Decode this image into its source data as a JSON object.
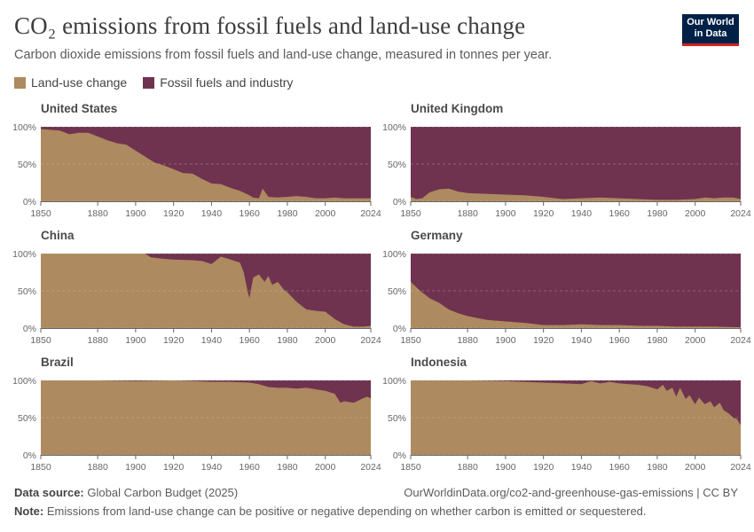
{
  "header": {
    "title": "CO₂ emissions from fossil fuels and land-use change",
    "subtitle": "Carbon dioxide emissions from fossil fuels and land-use change, measured in tonnes per year.",
    "logo_line1": "Our World",
    "logo_line2": "in Data"
  },
  "footer": {
    "source_label": "Data source:",
    "source_value": "Global Carbon Budget (2025)",
    "url": "OurWorldinData.org/co2-and-greenhouse-gas-emissions | CC BY",
    "note_label": "Note:",
    "note_value": "Emissions from land-use change can be positive or negative depending on whether carbon is emitted or sequestered."
  },
  "colors": {
    "land_use": "#ad8a5f",
    "fossil": "#6f3350",
    "grid": "#dddddd",
    "axis": "#666666"
  },
  "chart_data": [
    {
      "type": "area",
      "title": "United States",
      "x_ticks": [
        1850,
        1880,
        1900,
        1920,
        1940,
        1960,
        1980,
        2000,
        2024
      ],
      "y_ticks": [
        "0%",
        "50%",
        "100%"
      ],
      "xlim": [
        1850,
        2024
      ],
      "ylim": [
        0,
        100
      ],
      "series": [
        {
          "name": "Land-use change",
          "x": [
            1850,
            1855,
            1860,
            1865,
            1870,
            1875,
            1880,
            1885,
            1890,
            1895,
            1900,
            1905,
            1910,
            1915,
            1920,
            1925,
            1930,
            1935,
            1940,
            1945,
            1950,
            1955,
            1960,
            1962,
            1965,
            1967,
            1970,
            1975,
            1980,
            1985,
            1990,
            1995,
            2000,
            2005,
            2010,
            2015,
            2020,
            2024
          ],
          "values": [
            97,
            96,
            95,
            90,
            92,
            92,
            87,
            82,
            78,
            76,
            68,
            60,
            52,
            48,
            43,
            38,
            37,
            30,
            24,
            23,
            18,
            14,
            8,
            5,
            4,
            17,
            6,
            5,
            6,
            7,
            6,
            4,
            4,
            5,
            4,
            4,
            4,
            4
          ]
        },
        {
          "name": "Fossil fuels and industry",
          "values": "remainder to 100%"
        }
      ]
    },
    {
      "type": "area",
      "title": "United Kingdom",
      "x_ticks": [
        1850,
        1880,
        1900,
        1920,
        1940,
        1960,
        1980,
        2000,
        2024
      ],
      "y_ticks": [
        "0%",
        "50%",
        "100%"
      ],
      "xlim": [
        1850,
        2024
      ],
      "ylim": [
        0,
        100
      ],
      "series": [
        {
          "name": "Land-use change",
          "x": [
            1850,
            1853,
            1856,
            1860,
            1865,
            1870,
            1875,
            1880,
            1890,
            1900,
            1910,
            1920,
            1930,
            1940,
            1950,
            1960,
            1970,
            1980,
            1990,
            2000,
            2005,
            2010,
            2015,
            2020,
            2024
          ],
          "values": [
            6,
            3,
            4,
            12,
            16,
            17,
            13,
            11,
            10,
            9,
            8,
            6,
            3,
            4,
            5,
            4,
            3,
            2,
            2,
            3,
            5,
            4,
            5,
            5,
            3
          ]
        },
        {
          "name": "Fossil fuels and industry",
          "values": "remainder to 100%"
        }
      ]
    },
    {
      "type": "area",
      "title": "China",
      "x_ticks": [
        1850,
        1880,
        1900,
        1920,
        1940,
        1960,
        1980,
        2000,
        2024
      ],
      "y_ticks": [
        "0%",
        "50%",
        "100%"
      ],
      "xlim": [
        1850,
        2024
      ],
      "ylim": [
        0,
        100
      ],
      "series": [
        {
          "name": "Land-use change",
          "x": [
            1850,
            1880,
            1900,
            1905,
            1908,
            1915,
            1920,
            1930,
            1935,
            1940,
            1945,
            1950,
            1955,
            1957,
            1959,
            1960,
            1962,
            1965,
            1968,
            1970,
            1972,
            1975,
            1978,
            1980,
            1985,
            1990,
            1995,
            2000,
            2005,
            2010,
            2015,
            2020,
            2024
          ],
          "values": [
            100,
            100,
            100,
            100,
            95,
            93,
            92,
            91,
            90,
            86,
            96,
            92,
            88,
            75,
            50,
            40,
            68,
            72,
            62,
            70,
            58,
            62,
            52,
            48,
            35,
            25,
            23,
            22,
            12,
            5,
            2,
            2,
            3
          ]
        },
        {
          "name": "Fossil fuels and industry",
          "values": "remainder to 100%"
        }
      ]
    },
    {
      "type": "area",
      "title": "Germany",
      "x_ticks": [
        1850,
        1880,
        1900,
        1920,
        1940,
        1960,
        1980,
        2000,
        2024
      ],
      "y_ticks": [
        "0%",
        "50%",
        "100%"
      ],
      "xlim": [
        1850,
        2024
      ],
      "ylim": [
        0,
        100
      ],
      "series": [
        {
          "name": "Land-use change",
          "x": [
            1850,
            1855,
            1860,
            1865,
            1870,
            1875,
            1880,
            1890,
            1900,
            1910,
            1920,
            1930,
            1940,
            1950,
            1960,
            1970,
            1980,
            1990,
            2000,
            2010,
            2024
          ],
          "values": [
            62,
            50,
            40,
            34,
            25,
            20,
            16,
            11,
            9,
            7,
            4,
            4,
            5,
            4,
            4,
            3,
            3,
            2,
            2,
            2,
            1
          ]
        },
        {
          "name": "Fossil fuels and industry",
          "values": "remainder to 100%"
        }
      ]
    },
    {
      "type": "area",
      "title": "Brazil",
      "x_ticks": [
        1850,
        1880,
        1900,
        1920,
        1940,
        1960,
        1980,
        2000,
        2024
      ],
      "y_ticks": [
        "0%",
        "50%",
        "100%"
      ],
      "xlim": [
        1850,
        2024
      ],
      "ylim": [
        0,
        100
      ],
      "series": [
        {
          "name": "Land-use change",
          "x": [
            1850,
            1880,
            1900,
            1920,
            1940,
            1950,
            1960,
            1965,
            1970,
            1975,
            1980,
            1985,
            1990,
            1995,
            2000,
            2005,
            2008,
            2010,
            2015,
            2020,
            2022,
            2024
          ],
          "values": [
            100,
            100,
            99,
            100,
            98,
            98,
            97,
            95,
            91,
            90,
            90,
            89,
            90,
            88,
            86,
            82,
            70,
            72,
            70,
            76,
            78,
            76
          ]
        },
        {
          "name": "Fossil fuels and industry",
          "values": "remainder to 100%"
        }
      ]
    },
    {
      "type": "area",
      "title": "Indonesia",
      "x_ticks": [
        1850,
        1880,
        1900,
        1920,
        1940,
        1960,
        1980,
        2000,
        2024
      ],
      "y_ticks": [
        "0%",
        "50%",
        "100%"
      ],
      "xlim": [
        1850,
        2024
      ],
      "ylim": [
        0,
        100
      ],
      "series": [
        {
          "name": "Land-use change",
          "x": [
            1850,
            1880,
            1900,
            1920,
            1940,
            1945,
            1950,
            1955,
            1960,
            1965,
            1970,
            1975,
            1980,
            1983,
            1985,
            1988,
            1990,
            1992,
            1995,
            1997,
            2000,
            2002,
            2005,
            2008,
            2010,
            2013,
            2015,
            2018,
            2020,
            2022,
            2024
          ],
          "values": [
            100,
            100,
            99,
            97,
            95,
            99,
            96,
            98,
            96,
            95,
            94,
            92,
            88,
            94,
            86,
            90,
            78,
            90,
            75,
            80,
            68,
            77,
            68,
            72,
            64,
            70,
            60,
            55,
            50,
            48,
            40
          ]
        },
        {
          "name": "Fossil fuels and industry",
          "values": "remainder to 100%"
        }
      ]
    }
  ]
}
